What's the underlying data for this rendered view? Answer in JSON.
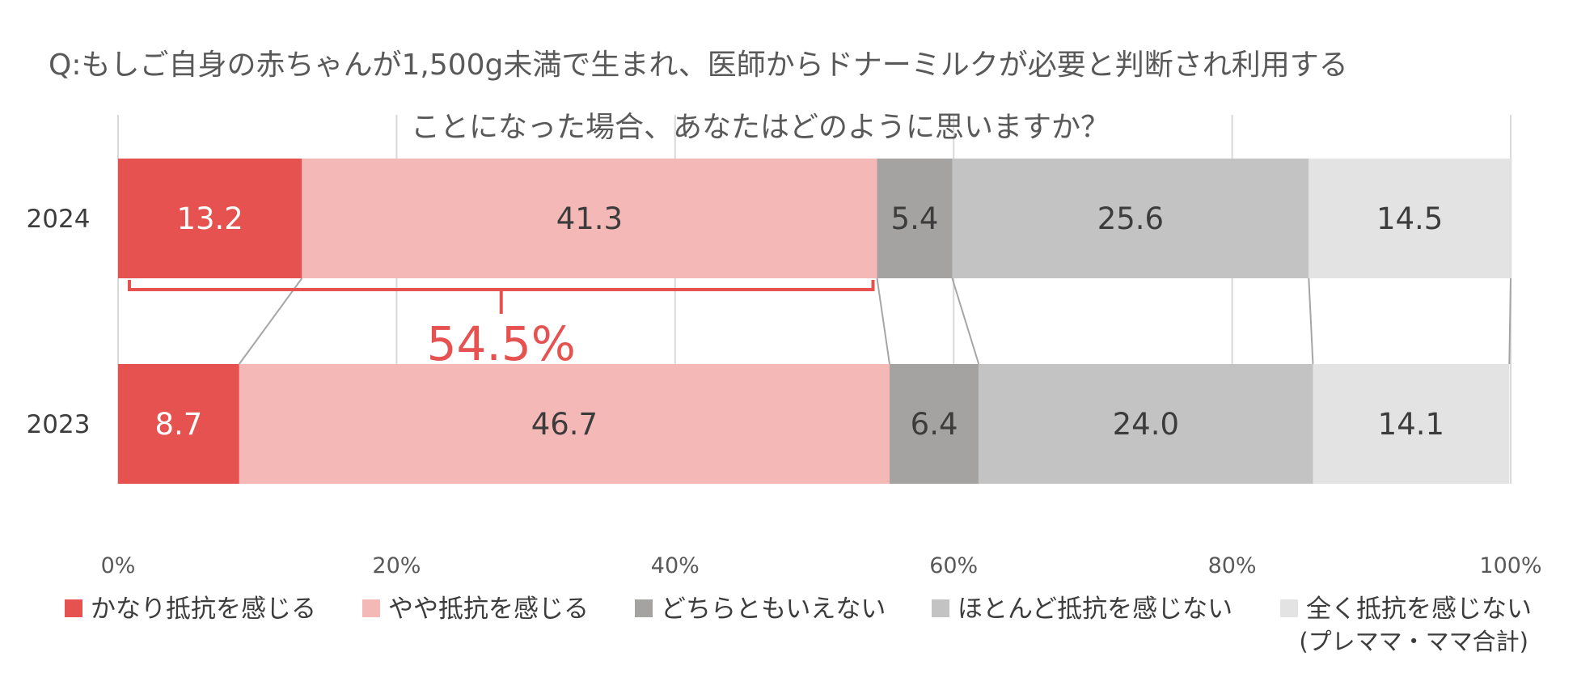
{
  "chart_data": {
    "type": "bar",
    "orientation": "horizontal",
    "stacked": true,
    "title": "Q:もしご自身の赤ちゃんが1,500g未満で生まれ、医師からドナーミルクが必要と判断され利用する ことになった場合、あなたはどのように思いますか？",
    "title_lines": [
      "Q:もしご自身の赤ちゃんが1,500g未満で生まれ、医師からドナーミルクが必要と判断され利用する",
      "ことになった場合、あなたはどのように思いますか？"
    ],
    "categories": [
      "2024",
      "2023"
    ],
    "series": [
      {
        "name": "かなり抵抗を感じる",
        "values": [
          13.2,
          8.7
        ],
        "color": "#e5524f",
        "label_color": "#ffffff"
      },
      {
        "name": "やや抵抗を感じる",
        "values": [
          41.3,
          46.7
        ],
        "color": "#f4b9b7",
        "label_color": "#3c3c3c"
      },
      {
        "name": "どちらともいえない",
        "values": [
          5.4,
          6.4
        ],
        "color": "#a5a2a2",
        "label_color": "#3c3c3c"
      },
      {
        "name": "ほとんど抵抗を感じない",
        "values": [
          25.6,
          24.0
        ],
        "color": "#c4c3c3",
        "label_color": "#3c3c3c"
      },
      {
        "name": "全く抵抗を感じない",
        "values": [
          14.5,
          14.1
        ],
        "color": "#e3e3e3",
        "label_color": "#3c3c3c"
      }
    ],
    "xlim": [
      0,
      100
    ],
    "x_ticks": [
      "0%",
      "20%",
      "40%",
      "60%",
      "80%",
      "100%"
    ],
    "gridlines": true,
    "legend_position": "bottom",
    "legend_note": "(プレママ・ママ合計)",
    "annotation": {
      "text": "54.5%",
      "category": "2024",
      "spans_series": [
        "かなり抵抗を感じる",
        "やや抵抗を感じる"
      ],
      "color": "#e5524f"
    },
    "connector_lines": true
  }
}
